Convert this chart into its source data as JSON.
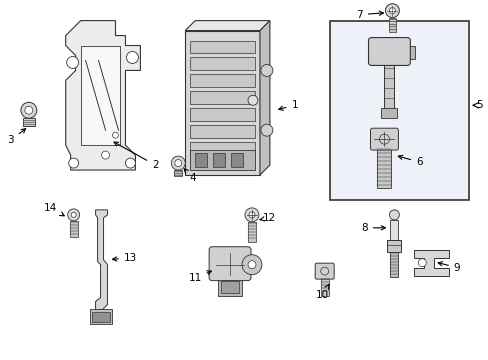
{
  "bg_color": "#ffffff",
  "lc": "#333333",
  "fill_light": "#e8e8e8",
  "fill_mid": "#d0d0d0",
  "fill_dark": "#b0b0b0",
  "fill_box5": "#e8eef8",
  "figsize": [
    4.89,
    3.6
  ],
  "dpi": 100
}
